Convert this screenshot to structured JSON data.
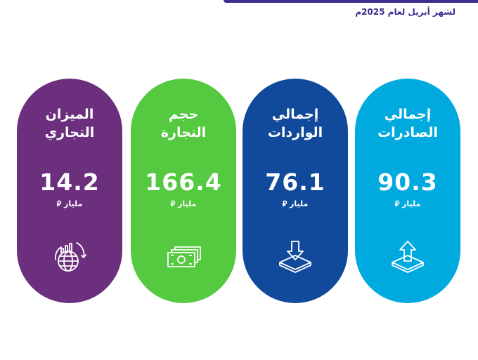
{
  "header": {
    "subtitle": "لشهر أبريل لعام 2025م"
  },
  "cards": [
    {
      "title_line1": "الميزان",
      "title_line2": "التجاري",
      "value": "14.2",
      "unit": "مليار ⃁",
      "icon": "globe-growth-icon",
      "color": "#6b2f7e"
    },
    {
      "title_line1": "حجم",
      "title_line2": "التجارة",
      "value": "166.4",
      "unit": "مليار ⃁",
      "icon": "banknotes-icon",
      "color": "#55c93f"
    },
    {
      "title_line1": "إجمالي",
      "title_line2": "الواردات",
      "value": "76.1",
      "unit": "مليار ⃁",
      "icon": "import-arrow-down-icon",
      "color": "#114a9a"
    },
    {
      "title_line1": "إجمالي",
      "title_line2": "الصادرات",
      "value": "90.3",
      "unit": "مليار ⃁",
      "icon": "export-arrow-up-icon",
      "color": "#00a9de"
    }
  ]
}
